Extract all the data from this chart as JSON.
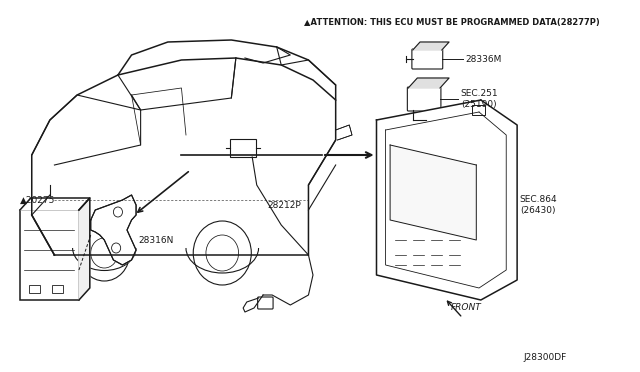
{
  "background_color": "#ffffff",
  "line_color": "#1a1a1a",
  "fig_width": 6.4,
  "fig_height": 3.72,
  "attention_text": "▲ATTENTION: THIS ECU MUST BE PROGRAMMED DATA(28277P)",
  "diagram_label": "J28300DF",
  "label_20275": "▲20275",
  "label_28316N": "28316N",
  "label_28212P": "28212P",
  "label_28336M": "28336M",
  "label_sec251": "SEC.251\n(25190)",
  "label_sec864": "SEC.864\n(26430)",
  "label_front": "FRONT"
}
